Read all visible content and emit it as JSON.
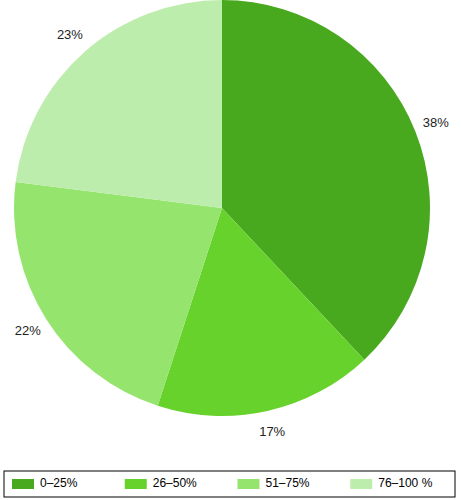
{
  "chart_data": {
    "type": "pie",
    "categories": [
      "0–25%",
      "26–50%",
      "51–75%",
      "76–100 %"
    ],
    "values": [
      38,
      17,
      22,
      23
    ],
    "value_labels": [
      "38%",
      "17%",
      "22%",
      "23%"
    ],
    "colors": [
      "#48a91e",
      "#68d22c",
      "#95e46e",
      "#bdedad"
    ],
    "data_labels": true,
    "legend": "bottom"
  }
}
